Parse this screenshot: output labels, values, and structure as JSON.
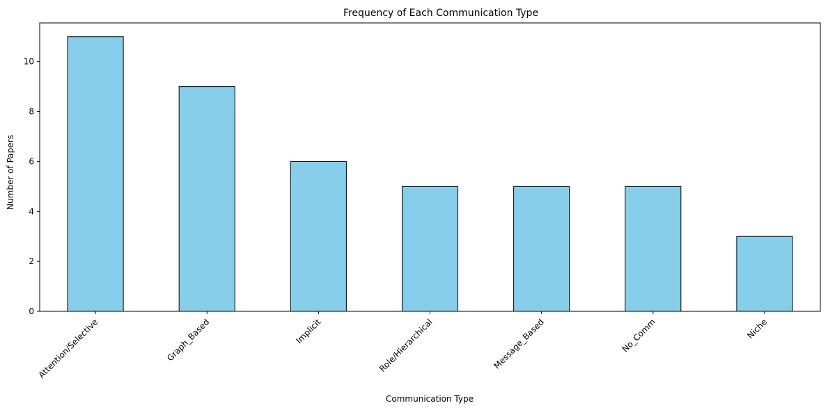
{
  "chart_data": {
    "type": "bar",
    "title": "Frequency of Each Communication Type",
    "xlabel": "Communication Type",
    "ylabel": "Number of Papers",
    "categories": [
      "Attention/Selective",
      "Graph_Based",
      "Implicit",
      "Role/Hierarchical",
      "Message_Based",
      "No_Comm",
      "Niche"
    ],
    "values": [
      11,
      9,
      6,
      5,
      5,
      5,
      3
    ],
    "ylim": [
      0,
      11.55
    ],
    "yticks": [
      0,
      2,
      4,
      6,
      8,
      10
    ],
    "grid": false,
    "legend": "none",
    "x_tick_rotation_deg": 45,
    "colors": {
      "bar_fill": "#87CEEB",
      "bar_edge": "#000000",
      "axis": "#000000"
    }
  }
}
